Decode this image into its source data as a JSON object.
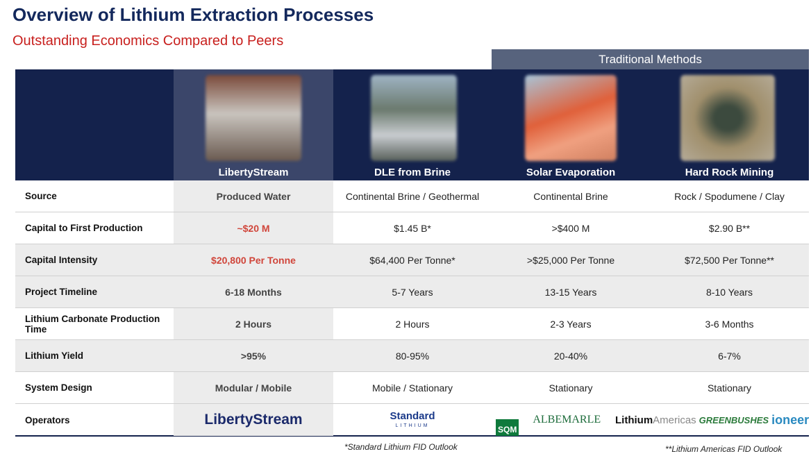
{
  "header": {
    "title": "Overview of Lithium Extraction Processes",
    "subtitle": "Outstanding Economics Compared to Peers"
  },
  "group_header": "Traditional Methods",
  "columns": [
    "LibertyStream",
    "DLE from Brine",
    "Solar Evaporation",
    "Hard Rock Mining"
  ],
  "table": {
    "rows": [
      {
        "label": "Source",
        "cells": [
          "Produced Water",
          "Continental Brine / Geothermal",
          "Continental Brine",
          "Rock / Spodumene / Clay"
        ]
      },
      {
        "label": "Capital to First Production",
        "cells": [
          "~$20 M",
          "$1.45 B*",
          ">$400 M",
          "$2.90 B**"
        ]
      },
      {
        "label": "Capital Intensity",
        "cells": [
          "$20,800 Per Tonne",
          "$64,400 Per Tonne*",
          ">$25,000 Per Tonne",
          "$72,500 Per Tonne**"
        ]
      },
      {
        "label": "Project Timeline",
        "cells": [
          "6-18 Months",
          "5-7 Years",
          "13-15 Years",
          "8-10 Years"
        ]
      },
      {
        "label": "Lithium Carbonate Production Time",
        "cells": [
          "2 Hours",
          "2 Hours",
          "2-3 Years",
          "3-6 Months"
        ]
      },
      {
        "label": "Lithium Yield",
        "cells": [
          ">95%",
          "80-95%",
          "20-40%",
          "6-7%"
        ]
      },
      {
        "label": "System Design",
        "cells": [
          "Modular / Mobile",
          "Mobile / Stationary",
          "Stationary",
          "Stationary"
        ]
      }
    ]
  },
  "operators": {
    "label": "Operators",
    "logos": [
      [
        "LibertyStream"
      ],
      [
        "Standard",
        "LITHIUM"
      ],
      [
        "SQM",
        "ALBEMARLE"
      ],
      [
        "Lithium",
        "Americas",
        "GREENBUSHES",
        "ioneer"
      ]
    ]
  },
  "footnotes": [
    "*Standard Lithium FID Outlook",
    "**Lithium Americas FID Outlook"
  ]
}
